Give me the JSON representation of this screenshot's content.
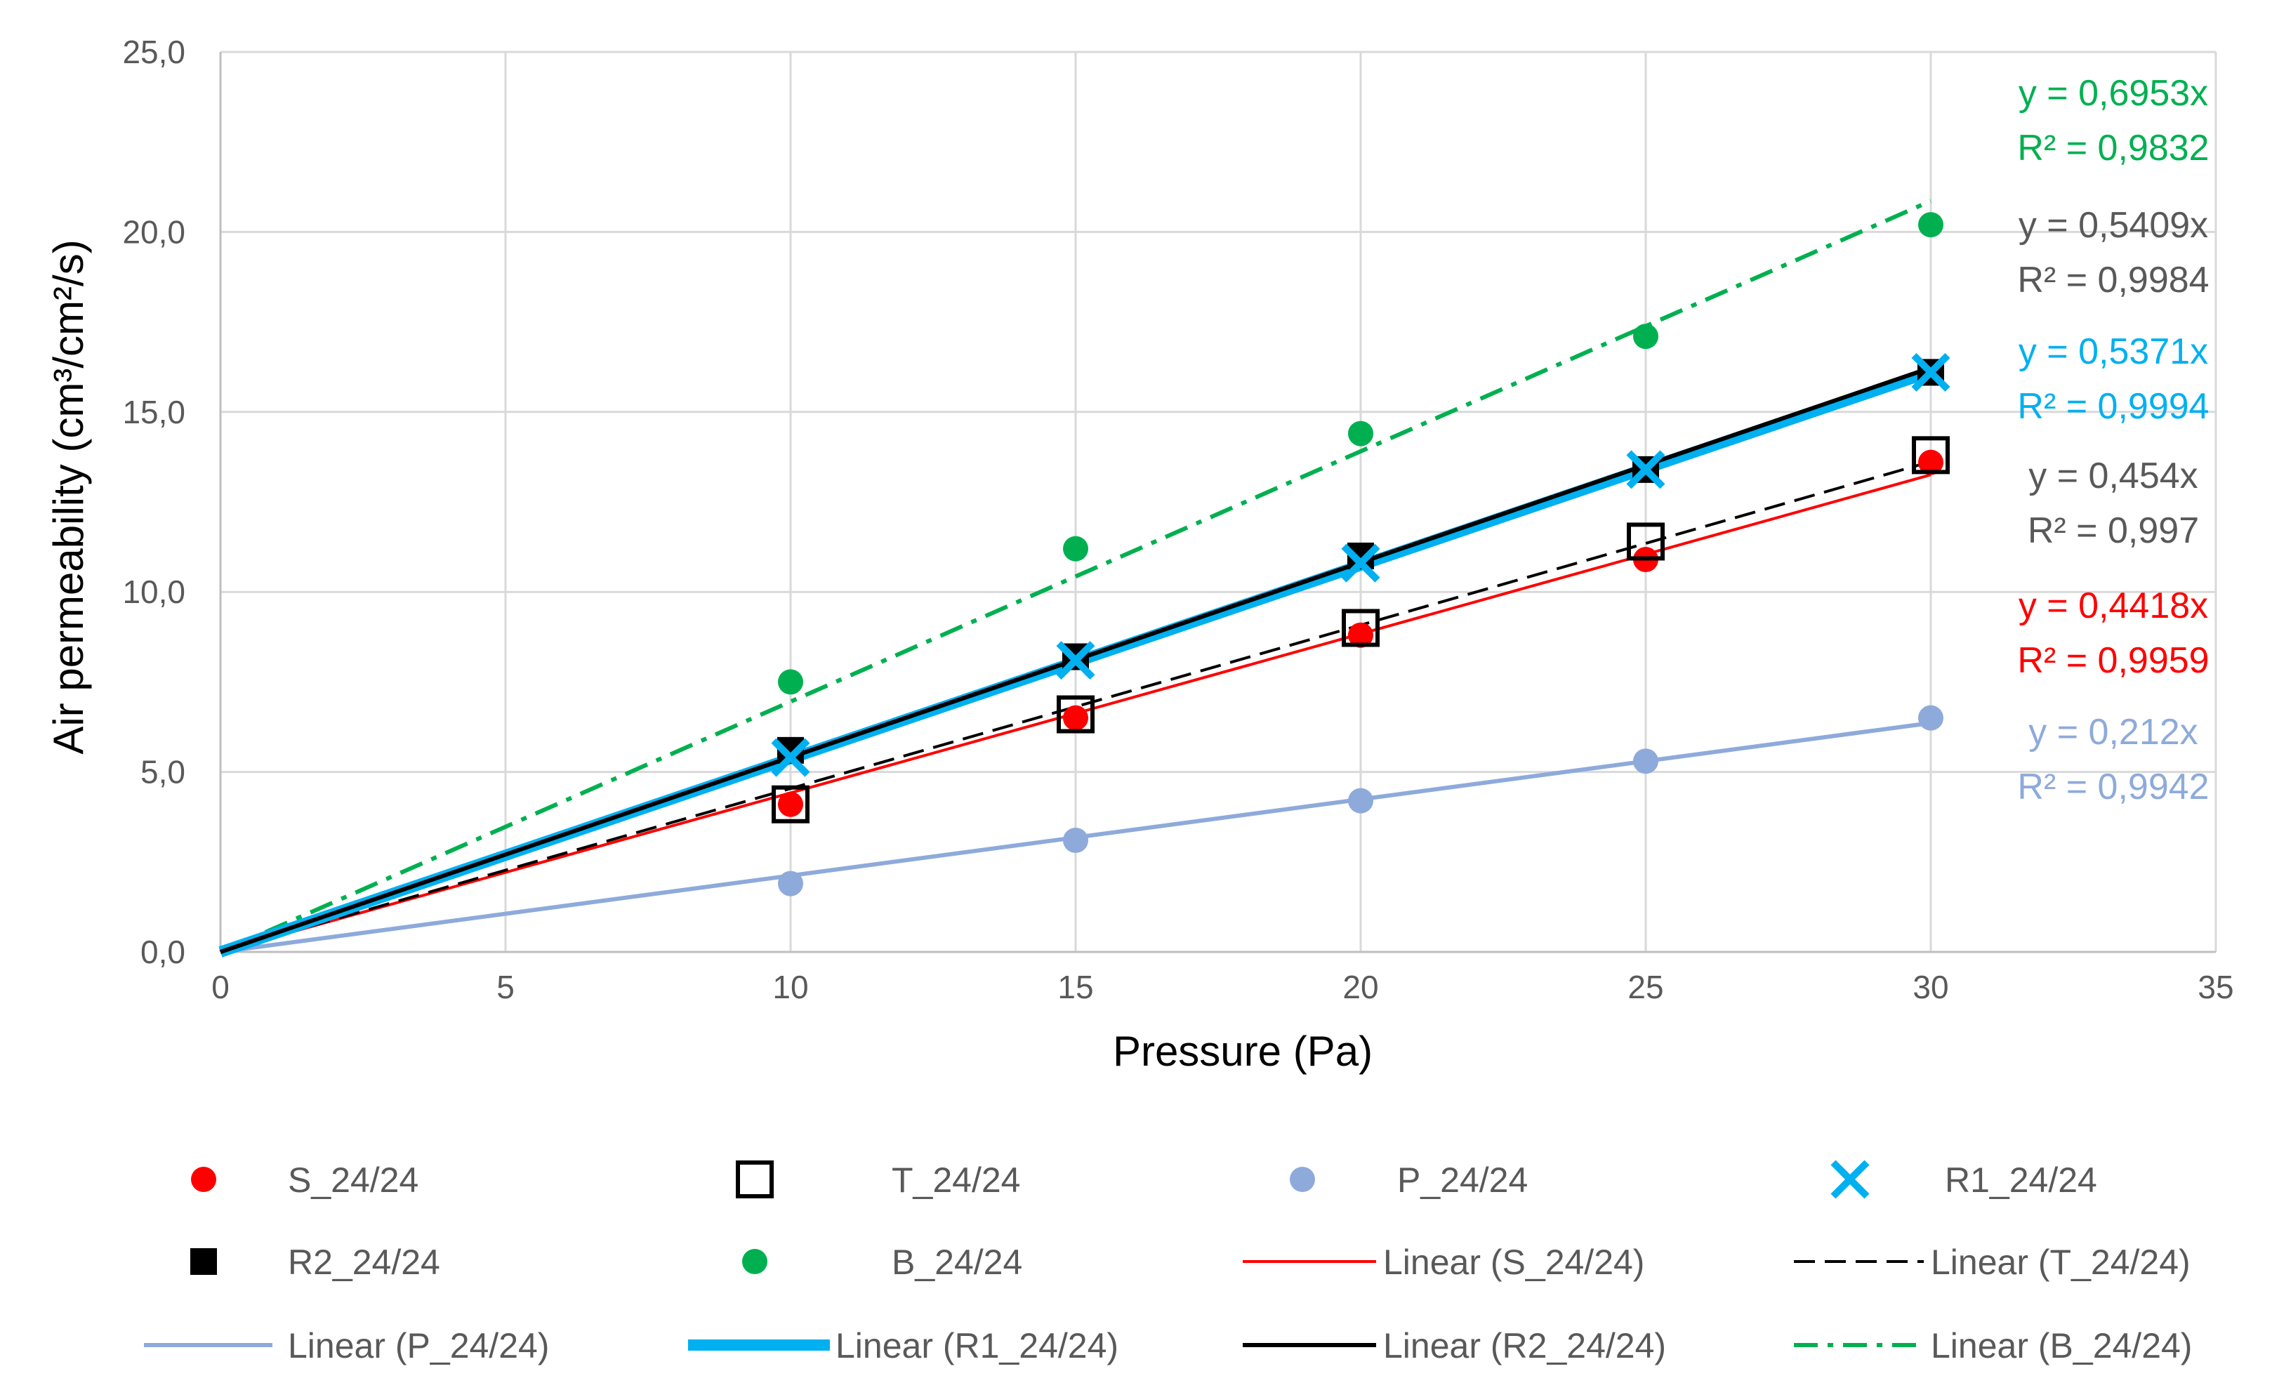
{
  "chart_data": {
    "type": "scatter",
    "title": "",
    "xlabel": "Pressure (Pa)",
    "ylabel": "Air permeability (cm³/cm²/s)",
    "xlim": [
      0,
      35
    ],
    "ylim": [
      0,
      25
    ],
    "x_ticks": [
      "0",
      "5",
      "10",
      "15",
      "20",
      "25",
      "30",
      "35"
    ],
    "y_ticks": [
      "0,0",
      "5,0",
      "10,0",
      "15,0",
      "20,0",
      "25,0"
    ],
    "grid": true,
    "legend_position": "bottom",
    "series": [
      {
        "name": "S_24/24",
        "marker": "circle-filled",
        "color": "#ff0000",
        "x": [
          10,
          15,
          20,
          25,
          30
        ],
        "y": [
          4.1,
          6.5,
          8.8,
          10.9,
          13.6
        ]
      },
      {
        "name": "T_24/24",
        "marker": "square-open",
        "color": "#000000",
        "x": [
          10,
          15,
          20,
          25,
          30
        ],
        "y": [
          4.1,
          6.6,
          9.0,
          11.4,
          13.8
        ]
      },
      {
        "name": "P_24/24",
        "marker": "circle-filled",
        "color": "#8eaadb",
        "x": [
          10,
          15,
          20,
          25,
          30
        ],
        "y": [
          1.9,
          3.1,
          4.2,
          5.3,
          6.5
        ]
      },
      {
        "name": "R1_24/24",
        "marker": "x",
        "color": "#00b0f0",
        "x": [
          10,
          15,
          20,
          25,
          30
        ],
        "y": [
          5.4,
          8.1,
          10.8,
          13.4,
          16.1
        ]
      },
      {
        "name": "R2_24/24",
        "marker": "square-filled",
        "color": "#000000",
        "x": [
          10,
          15,
          20,
          25,
          30
        ],
        "y": [
          5.6,
          8.2,
          11.0,
          13.4,
          16.1
        ]
      },
      {
        "name": "B_24/24",
        "marker": "circle-filled",
        "color": "#00b050",
        "x": [
          10,
          15,
          20,
          25,
          30
        ],
        "y": [
          7.5,
          11.2,
          14.4,
          17.1,
          20.2
        ]
      }
    ],
    "trendlines": [
      {
        "name": "Linear (S_24/24)",
        "slope": 0.4418,
        "color": "#ff0000",
        "style": "solid",
        "weight": "thin"
      },
      {
        "name": "Linear (T_24/24)",
        "slope": 0.454,
        "color": "#000000",
        "style": "dash",
        "weight": "thin"
      },
      {
        "name": "Linear (P_24/24)",
        "slope": 0.212,
        "color": "#8eaadb",
        "style": "solid",
        "weight": "medium"
      },
      {
        "name": "Linear (R1_24/24)",
        "slope": 0.5371,
        "color": "#00b0f0",
        "style": "solid",
        "weight": "thick"
      },
      {
        "name": "Linear (R2_24/24)",
        "slope": 0.5409,
        "color": "#000000",
        "style": "solid",
        "weight": "medium"
      },
      {
        "name": "Linear (B_24/24)",
        "slope": 0.6953,
        "color": "#00b050",
        "style": "dashdot",
        "weight": "medium"
      }
    ],
    "equations": [
      {
        "eq": "y = 0,6953x",
        "r2": "R² = 0,9832",
        "color": "#00b050"
      },
      {
        "eq": "y = 0,5409x",
        "r2": "R² = 0,9984",
        "color": "#595959"
      },
      {
        "eq": "y = 0,5371x",
        "r2": "R² = 0,9994",
        "color": "#00b0f0"
      },
      {
        "eq": "y = 0,454x",
        "r2": "R² = 0,997",
        "color": "#595959"
      },
      {
        "eq": "y = 0,4418x",
        "r2": "R² = 0,9959",
        "color": "#ff0000"
      },
      {
        "eq": "y = 0,212x",
        "r2": "R² = 0,9942",
        "color": "#8eaadb"
      }
    ],
    "legend": [
      "S_24/24",
      "T_24/24",
      "P_24/24",
      "R1_24/24",
      "R2_24/24",
      "B_24/24",
      "Linear (S_24/24)",
      "Linear (T_24/24)",
      "Linear (P_24/24)",
      "Linear (R1_24/24)",
      "Linear (R2_24/24)",
      "Linear (B_24/24)"
    ]
  }
}
